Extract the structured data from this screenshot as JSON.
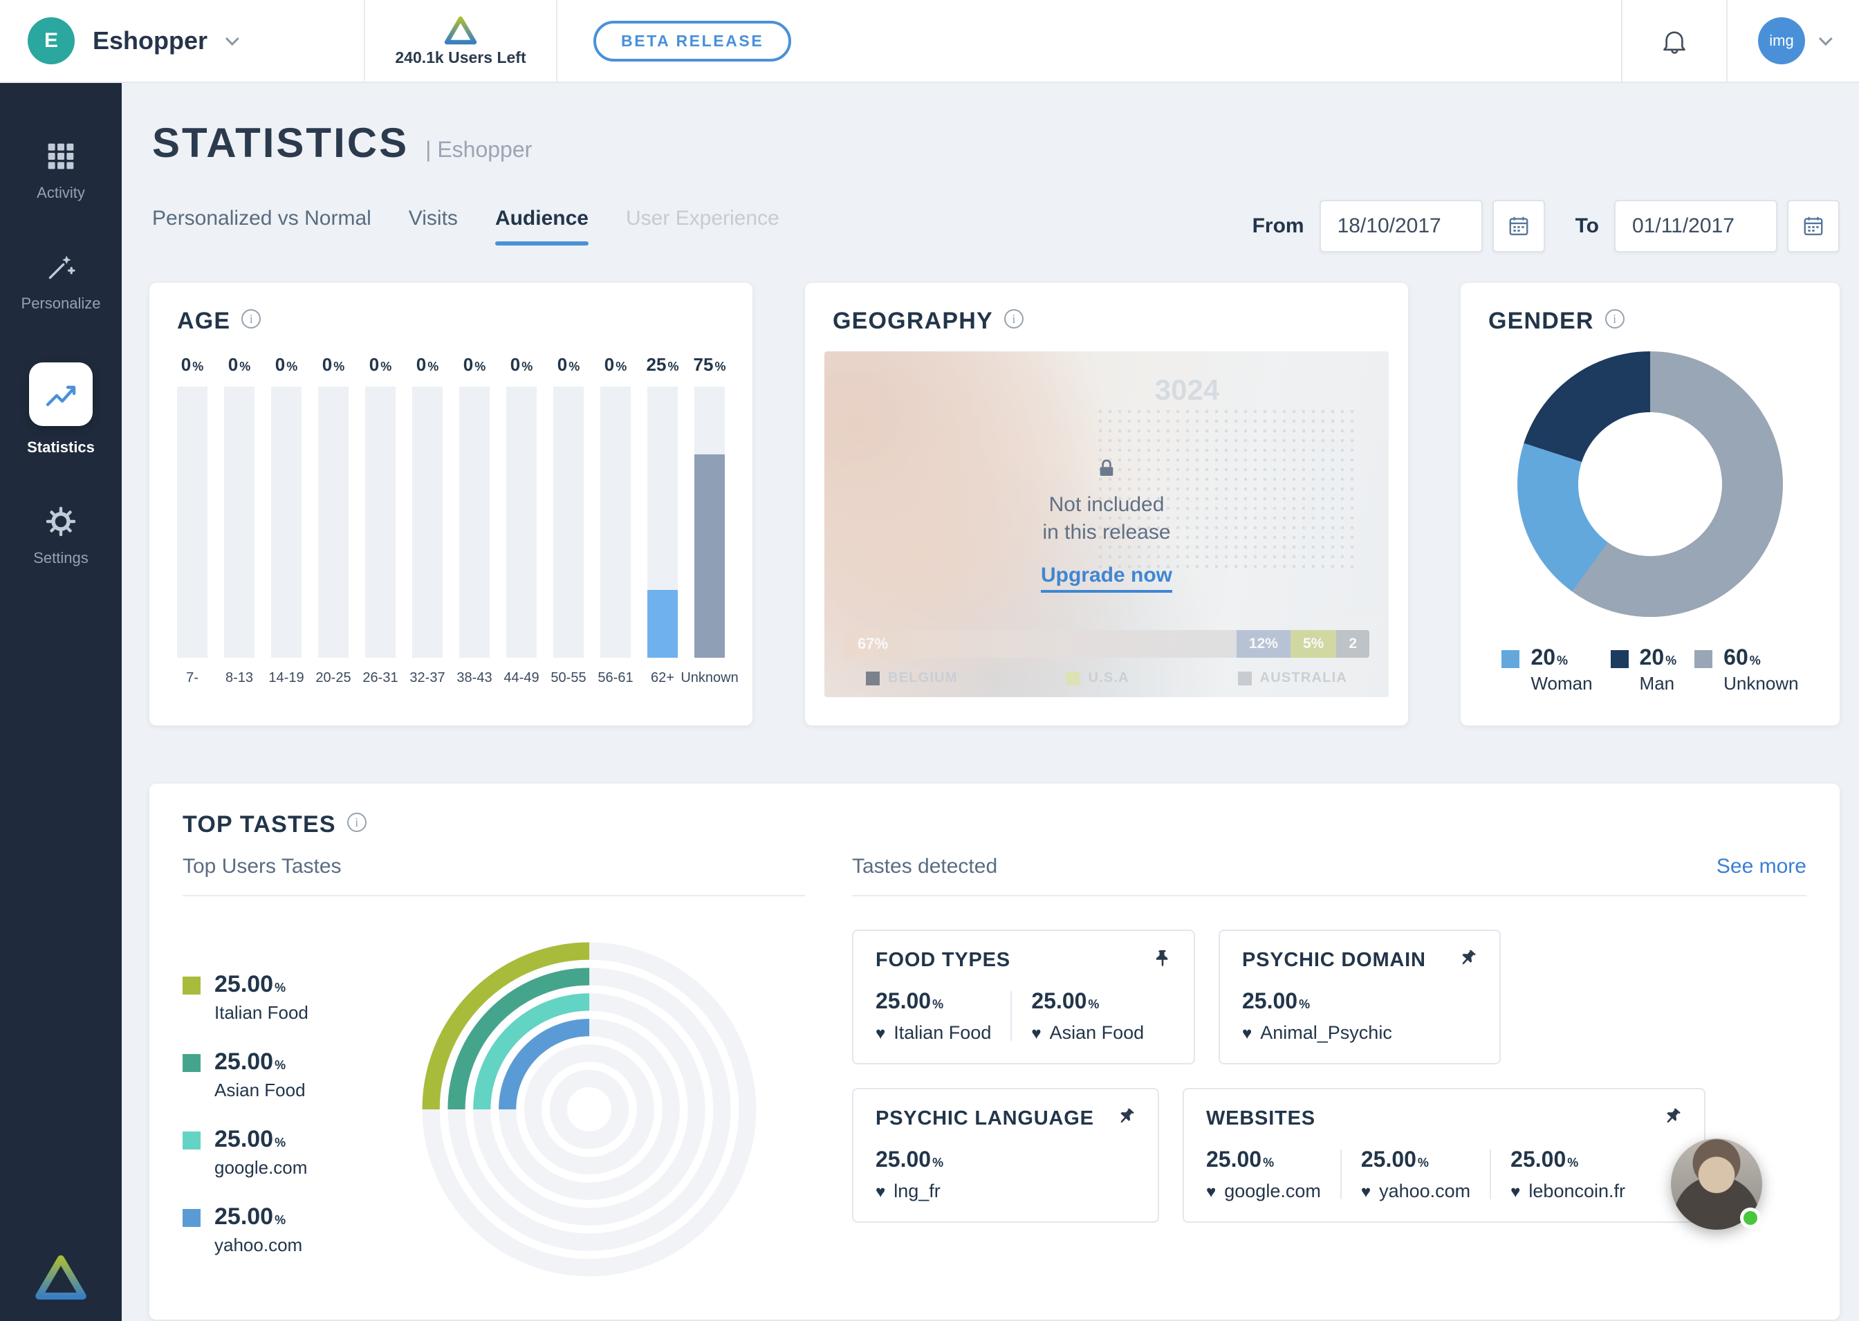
{
  "topbar": {
    "org_initial": "E",
    "org_name": "Eshopper",
    "users_left": "240.1k Users Left",
    "beta_badge": "BETA RELEASE",
    "avatar_label": "img"
  },
  "sidebar": {
    "items": [
      {
        "label": "Activity"
      },
      {
        "label": "Personalize"
      },
      {
        "label": "Statistics"
      },
      {
        "label": "Settings"
      }
    ]
  },
  "header": {
    "title": "STATISTICS",
    "subtitle": "| Eshopper",
    "tabs": [
      {
        "label": "Personalized vs Normal"
      },
      {
        "label": "Visits"
      },
      {
        "label": "Audience"
      },
      {
        "label": "User Experience"
      }
    ],
    "from_label": "From",
    "from_value": "18/10/2017",
    "to_label": "To",
    "to_value": "01/11/2017"
  },
  "age": {
    "title": "AGE",
    "unit": "%",
    "bars": [
      {
        "label": "7-",
        "value": 0
      },
      {
        "label": "8-13",
        "value": 0
      },
      {
        "label": "14-19",
        "value": 0
      },
      {
        "label": "20-25",
        "value": 0
      },
      {
        "label": "26-31",
        "value": 0
      },
      {
        "label": "32-37",
        "value": 0
      },
      {
        "label": "38-43",
        "value": 0
      },
      {
        "label": "44-49",
        "value": 0
      },
      {
        "label": "50-55",
        "value": 0
      },
      {
        "label": "56-61",
        "value": 0
      },
      {
        "label": "62+",
        "value": 25,
        "color": "#6fb0ee"
      },
      {
        "label": "Unknown",
        "value": 75,
        "color": "#8e9fb6"
      }
    ]
  },
  "geography": {
    "title": "GEOGRAPHY",
    "locked_line1": "Not included",
    "locked_line2": "in this release",
    "upgrade_label": "Upgrade now",
    "faded_stat": "3024",
    "faded_bar": [
      {
        "label": "67%"
      },
      {
        "label": "12%"
      },
      {
        "label": "5%"
      },
      {
        "label": "2"
      }
    ],
    "faded_legend": [
      {
        "label": "BELGIUM",
        "color": "#2b3a4d"
      },
      {
        "label": "U.S.A",
        "color": "#cdd98e"
      },
      {
        "label": "AUSTRALIA",
        "color": "#aab4bf"
      }
    ]
  },
  "gender": {
    "title": "GENDER",
    "unit": "%",
    "segments": [
      {
        "label": "Woman",
        "value": 20,
        "color": "#63a8dc"
      },
      {
        "label": "Man",
        "value": 20,
        "color": "#1d3a5f"
      },
      {
        "label": "Unknown",
        "value": 60,
        "color": "#98a6b5"
      }
    ],
    "draw_order": [
      2,
      0,
      1
    ]
  },
  "top_tastes": {
    "title": "TOP TASTES",
    "left_subtitle": "Top Users Tastes",
    "right_subtitle": "Tastes detected",
    "see_more": "See more",
    "unit": "%",
    "legend": [
      {
        "value": "25.00",
        "label": "Italian Food",
        "color": "#a9bb3a"
      },
      {
        "value": "25.00",
        "label": "Asian Food",
        "color": "#45a58c"
      },
      {
        "value": "25.00",
        "label": "google.com",
        "color": "#63d3c3"
      },
      {
        "value": "25.00",
        "label": "yahoo.com",
        "color": "#5b9bd5"
      }
    ],
    "detected_cards": [
      {
        "title": "FOOD TYPES",
        "items": [
          {
            "value": "25.00",
            "label": "Italian Food"
          },
          {
            "value": "25.00",
            "label": "Asian Food"
          }
        ]
      },
      {
        "title": "PSYCHIC DOMAIN",
        "items": [
          {
            "value": "25.00",
            "label": "Animal_Psychic"
          }
        ]
      },
      {
        "title": "PSYCHIC LANGUAGE",
        "items": [
          {
            "value": "25.00",
            "label": "lng_fr"
          }
        ]
      },
      {
        "title": "WEBSITES",
        "items": [
          {
            "value": "25.00",
            "label": "google.com"
          },
          {
            "value": "25.00",
            "label": "yahoo.com"
          },
          {
            "value": "25.00",
            "label": "leboncoin.fr"
          }
        ]
      }
    ]
  },
  "icons": {
    "heart": "♥"
  }
}
